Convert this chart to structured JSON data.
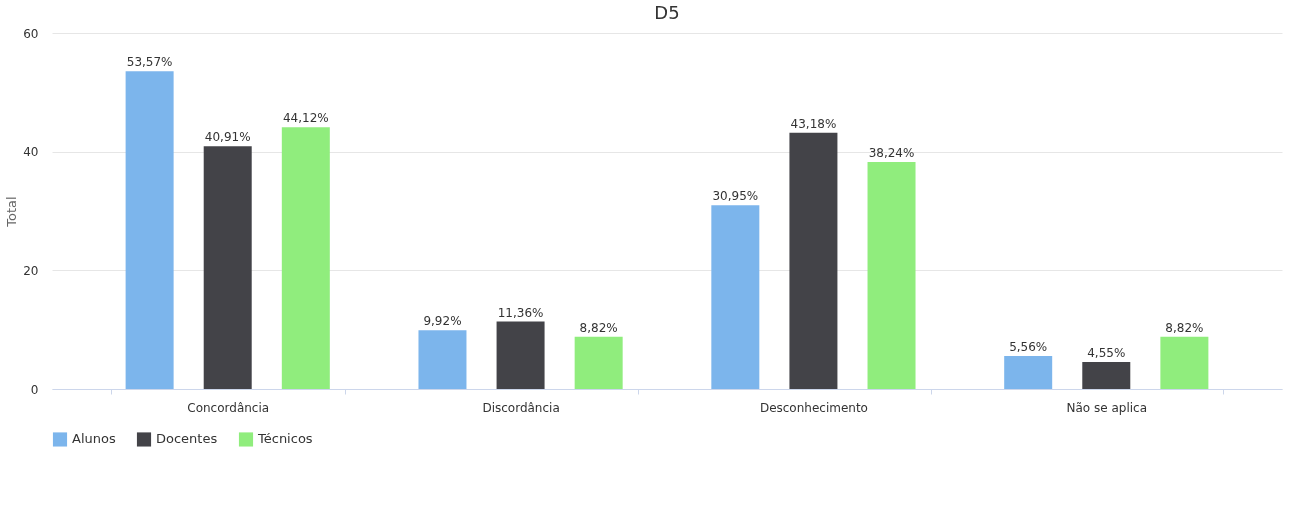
{
  "chart_data": {
    "type": "bar",
    "title": "D5",
    "ylabel": "Total",
    "categories": [
      "Concordância",
      "Discordância",
      "Desconhecimento",
      "Não se aplica"
    ],
    "series": [
      {
        "name": "Alunos",
        "color": "#7cb5ec",
        "values": [
          53.57,
          9.92,
          30.95,
          5.56
        ],
        "value_labels": [
          "53,57%",
          "9,92%",
          "30,95%",
          "5,56%"
        ]
      },
      {
        "name": "Docentes",
        "color": "#434348",
        "values": [
          40.91,
          11.36,
          43.18,
          4.55
        ],
        "value_labels": [
          "40,91%",
          "11,36%",
          "43,18%",
          "4,55%"
        ]
      },
      {
        "name": "Técnicos",
        "color": "#90ed7d",
        "values": [
          44.12,
          8.82,
          38.24,
          8.82
        ],
        "value_labels": [
          "44,12%",
          "8,82%",
          "38,24%",
          "8,82%"
        ]
      }
    ],
    "ylim": [
      0,
      60
    ],
    "yticks": [
      0,
      20,
      40,
      60
    ],
    "grid": "y",
    "legend": "bottom"
  }
}
